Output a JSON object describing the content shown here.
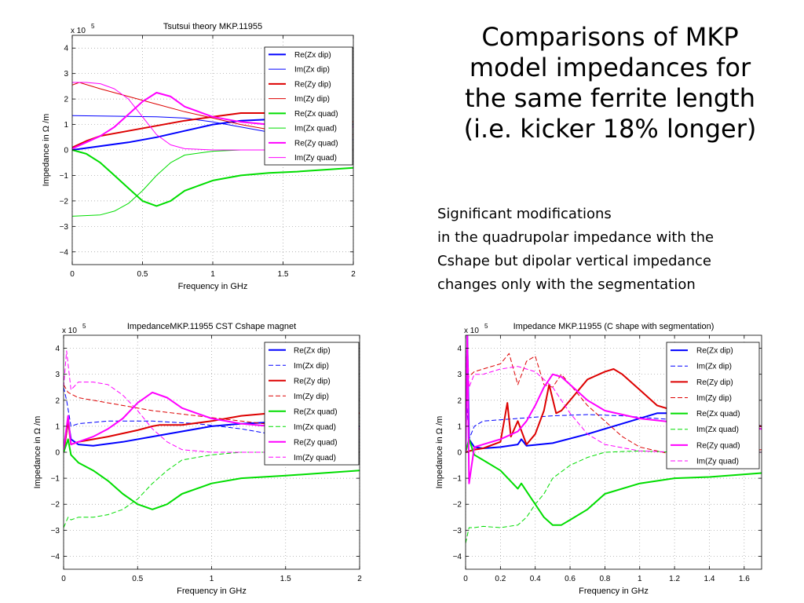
{
  "slide": {
    "title_lines": [
      "Comparisons of MKP",
      "model impedances for",
      "the same ferrite length",
      "(i.e. kicker 18% longer)"
    ],
    "body_lines": [
      "Significant modifications",
      "in the quadrupolar impedance with the",
      "Cshape but dipolar vertical impedance",
      "changes only with the segmentation"
    ]
  },
  "chart_data": [
    {
      "type": "line",
      "title": "Tsutsui theory MKP.11955",
      "xlabel": "Frequency in GHz",
      "ylabel": "Impedance in Ω /m",
      "multiplier": "x 10",
      "multiplier_exp": "5",
      "xlim": [
        0,
        2
      ],
      "ylim": [
        -4.5,
        4.5
      ],
      "xticks": [
        0,
        0.5,
        1,
        1.5,
        2
      ],
      "yticks": [
        -4,
        -3,
        -2,
        -1,
        0,
        1,
        2,
        3,
        4
      ],
      "grid": true,
      "legend_position": "top-right",
      "series": [
        {
          "name": "Re(Zx dip)",
          "color": "#0000ff",
          "style": "solid",
          "width": 2,
          "x": [
            0,
            0.2,
            0.4,
            0.6,
            0.8,
            1.0,
            1.2,
            1.4,
            1.6,
            2.0
          ],
          "y": [
            0,
            0.15,
            0.3,
            0.5,
            0.75,
            1.0,
            1.15,
            1.2,
            1.15,
            1.0
          ]
        },
        {
          "name": "Im(Zx dip)",
          "color": "#0000ff",
          "style": "solid",
          "width": 1,
          "x": [
            0,
            0.2,
            0.4,
            0.6,
            0.8,
            1.0,
            1.2,
            1.4,
            1.6,
            2.0
          ],
          "y": [
            1.35,
            1.33,
            1.32,
            1.3,
            1.25,
            1.1,
            0.9,
            0.7,
            0.55,
            0.4
          ]
        },
        {
          "name": "Re(Zy dip)",
          "color": "#dd0000",
          "style": "solid",
          "width": 2,
          "x": [
            0,
            0.1,
            0.2,
            0.4,
            0.6,
            0.8,
            1.0,
            1.2,
            1.4,
            1.6,
            2.0
          ],
          "y": [
            0.1,
            0.35,
            0.55,
            0.75,
            0.95,
            1.15,
            1.3,
            1.45,
            1.45,
            1.3,
            1.1
          ]
        },
        {
          "name": "Im(Zy dip)",
          "color": "#dd0000",
          "style": "solid",
          "width": 1,
          "x": [
            0,
            0.05,
            0.2,
            0.4,
            0.6,
            0.8,
            1.0,
            1.2,
            1.4,
            1.6,
            2.0
          ],
          "y": [
            2.55,
            2.65,
            2.4,
            2.1,
            1.8,
            1.5,
            1.25,
            1.0,
            0.8,
            0.7,
            0.6
          ]
        },
        {
          "name": "Re(Zx quad)",
          "color": "#00dd00",
          "style": "solid",
          "width": 2,
          "x": [
            0,
            0.1,
            0.2,
            0.3,
            0.4,
            0.5,
            0.6,
            0.7,
            0.8,
            1.0,
            1.2,
            1.4,
            1.6,
            2.0
          ],
          "y": [
            0,
            -0.15,
            -0.5,
            -1.0,
            -1.5,
            -2.0,
            -2.2,
            -2.0,
            -1.6,
            -1.2,
            -1.0,
            -0.9,
            -0.85,
            -0.7
          ]
        },
        {
          "name": "Im(Zx quad)",
          "color": "#00dd00",
          "style": "solid",
          "width": 1,
          "x": [
            0,
            0.2,
            0.3,
            0.4,
            0.5,
            0.6,
            0.7,
            0.8,
            1.0,
            1.2,
            1.5,
            2.0
          ],
          "y": [
            -2.6,
            -2.55,
            -2.4,
            -2.1,
            -1.6,
            -1.0,
            -0.5,
            -0.2,
            -0.05,
            0,
            0,
            0
          ]
        },
        {
          "name": "Re(Zy quad)",
          "color": "#ff00ff",
          "style": "solid",
          "width": 2,
          "x": [
            0,
            0.1,
            0.2,
            0.3,
            0.4,
            0.5,
            0.6,
            0.7,
            0.8,
            1.0,
            1.2,
            1.4,
            1.6,
            2.0
          ],
          "y": [
            0.05,
            0.3,
            0.55,
            0.9,
            1.4,
            1.9,
            2.25,
            2.1,
            1.7,
            1.3,
            1.1,
            1.0,
            0.95,
            0.9
          ]
        },
        {
          "name": "Im(Zy quad)",
          "color": "#ff00ff",
          "style": "solid",
          "width": 1,
          "x": [
            0,
            0.1,
            0.2,
            0.3,
            0.4,
            0.5,
            0.6,
            0.7,
            0.8,
            1.0,
            1.2,
            1.5,
            2.0
          ],
          "y": [
            2.65,
            2.65,
            2.6,
            2.4,
            2.0,
            1.3,
            0.6,
            0.2,
            0.05,
            0,
            0,
            0,
            0
          ]
        }
      ]
    },
    {
      "type": "line",
      "title": "ImpedanceMKP.11955  CST Cshape magnet",
      "xlabel": "Frequency in GHz",
      "ylabel": "Impedance in Ω /m",
      "multiplier": "x 10",
      "multiplier_exp": "5",
      "xlim": [
        0,
        2
      ],
      "ylim": [
        -4.5,
        4.5
      ],
      "xticks": [
        0,
        0.5,
        1,
        1.5,
        2
      ],
      "yticks": [
        -4,
        -3,
        -2,
        -1,
        0,
        1,
        2,
        3,
        4
      ],
      "grid": true,
      "legend_position": "top-right",
      "series": [
        {
          "name": "Re(Zx dip)",
          "color": "#0000ff",
          "style": "solid",
          "width": 2,
          "x": [
            0,
            0.03,
            0.05,
            0.1,
            0.2,
            0.4,
            0.6,
            0.8,
            1.0,
            1.2,
            1.4,
            1.6,
            2.0
          ],
          "y": [
            0,
            1.2,
            0.5,
            0.3,
            0.25,
            0.4,
            0.6,
            0.8,
            1.0,
            1.1,
            1.15,
            1.1,
            1.0
          ]
        },
        {
          "name": "Im(Zx dip)",
          "color": "#0000ff",
          "style": "dashed",
          "width": 1,
          "x": [
            0,
            0.02,
            0.05,
            0.1,
            0.3,
            0.6,
            0.9,
            1.2,
            1.5,
            2.0
          ],
          "y": [
            2.5,
            2.0,
            1.0,
            1.1,
            1.2,
            1.2,
            1.1,
            0.9,
            0.6,
            0.4
          ]
        },
        {
          "name": "Re(Zy dip)",
          "color": "#dd0000",
          "style": "solid",
          "width": 2,
          "x": [
            0,
            0.03,
            0.05,
            0.1,
            0.3,
            0.5,
            0.6,
            0.65,
            0.8,
            1.0,
            1.2,
            1.4,
            1.6,
            2.0
          ],
          "y": [
            0,
            1.2,
            0.3,
            0.4,
            0.6,
            0.85,
            1.0,
            1.05,
            1.05,
            1.2,
            1.4,
            1.5,
            1.55,
            1.5
          ]
        },
        {
          "name": "Im(Zy dip)",
          "color": "#dd0000",
          "style": "dashed",
          "width": 1,
          "x": [
            0,
            0.03,
            0.1,
            0.3,
            0.6,
            0.9,
            1.2,
            1.5,
            2.0
          ],
          "y": [
            2.6,
            2.3,
            2.1,
            1.9,
            1.6,
            1.4,
            1.2,
            1.0,
            0.8
          ]
        },
        {
          "name": "Re(Zx quad)",
          "color": "#00dd00",
          "style": "solid",
          "width": 2,
          "x": [
            0,
            0.03,
            0.05,
            0.1,
            0.2,
            0.3,
            0.4,
            0.5,
            0.6,
            0.7,
            0.8,
            1.0,
            1.2,
            1.5,
            2.0
          ],
          "y": [
            0,
            0.5,
            -0.1,
            -0.4,
            -0.7,
            -1.1,
            -1.6,
            -2.0,
            -2.2,
            -2.0,
            -1.6,
            -1.2,
            -1.0,
            -0.9,
            -0.7
          ]
        },
        {
          "name": "Im(Zx quad)",
          "color": "#00dd00",
          "style": "dashed",
          "width": 1,
          "x": [
            0,
            0.03,
            0.05,
            0.1,
            0.2,
            0.3,
            0.4,
            0.5,
            0.6,
            0.7,
            0.8,
            1.0,
            1.2,
            1.5,
            2.0
          ],
          "y": [
            -2.9,
            -2.5,
            -2.6,
            -2.5,
            -2.5,
            -2.4,
            -2.2,
            -1.8,
            -1.2,
            -0.7,
            -0.3,
            -0.1,
            0,
            0,
            0
          ]
        },
        {
          "name": "Re(Zy quad)",
          "color": "#ff00ff",
          "style": "solid",
          "width": 2,
          "x": [
            0,
            0.03,
            0.05,
            0.1,
            0.2,
            0.3,
            0.4,
            0.5,
            0.6,
            0.7,
            0.8,
            1.0,
            1.2,
            1.4,
            2.0
          ],
          "y": [
            0.1,
            1.4,
            0.3,
            0.4,
            0.6,
            0.9,
            1.3,
            1.9,
            2.3,
            2.1,
            1.7,
            1.3,
            1.1,
            1.0,
            0.9
          ]
        },
        {
          "name": "Im(Zy quad)",
          "color": "#ff00ff",
          "style": "dashed",
          "width": 1,
          "x": [
            0,
            0.02,
            0.05,
            0.1,
            0.2,
            0.3,
            0.4,
            0.5,
            0.6,
            0.7,
            0.8,
            1.0,
            1.5,
            2.0
          ],
          "y": [
            2.5,
            3.9,
            2.4,
            2.7,
            2.7,
            2.6,
            2.2,
            1.6,
            0.9,
            0.4,
            0.1,
            0,
            0,
            0
          ]
        }
      ]
    },
    {
      "type": "line",
      "title": "Impedance MKP.11955 (C shape with segmentation)",
      "xlabel": "Frequency in GHz",
      "ylabel": "Impedance in Ω /m",
      "multiplier": "x 10",
      "multiplier_exp": "5",
      "xlim": [
        0,
        1.7
      ],
      "ylim": [
        -4.5,
        4.5
      ],
      "xticks": [
        0,
        0.2,
        0.4,
        0.6,
        0.8,
        1,
        1.2,
        1.4,
        1.6
      ],
      "yticks": [
        -4,
        -3,
        -2,
        -1,
        0,
        1,
        2,
        3,
        4
      ],
      "grid": true,
      "legend_position": "top-right",
      "series": [
        {
          "name": "Re(Zx dip)",
          "color": "#0000ff",
          "style": "solid",
          "width": 2,
          "x": [
            0,
            0.01,
            0.02,
            0.05,
            0.1,
            0.2,
            0.3,
            0.32,
            0.35,
            0.5,
            0.7,
            0.9,
            1.1,
            1.3,
            1.5,
            1.7
          ],
          "y": [
            0,
            4.5,
            0.5,
            0.2,
            0.15,
            0.2,
            0.3,
            0.5,
            0.25,
            0.35,
            0.7,
            1.1,
            1.5,
            1.5,
            1.3,
            1.0
          ]
        },
        {
          "name": "Im(Zx dip)",
          "color": "#0000ff",
          "style": "dashed",
          "width": 1,
          "x": [
            0,
            0.02,
            0.05,
            0.1,
            0.3,
            0.5,
            0.7,
            0.9,
            1.1,
            1.3,
            1.5,
            1.7
          ],
          "y": [
            2.5,
            0.5,
            1.0,
            1.2,
            1.3,
            1.4,
            1.45,
            1.4,
            1.3,
            1.2,
            1.05,
            0.9
          ]
        },
        {
          "name": "Re(Zy dip)",
          "color": "#dd0000",
          "style": "solid",
          "width": 2,
          "x": [
            0,
            0.05,
            0.1,
            0.2,
            0.24,
            0.26,
            0.3,
            0.35,
            0.4,
            0.45,
            0.48,
            0.52,
            0.55,
            0.6,
            0.7,
            0.8,
            0.85,
            0.9,
            1.0,
            1.1,
            1.2,
            1.4,
            1.6,
            1.7
          ],
          "y": [
            0,
            0.1,
            0.15,
            0.4,
            1.9,
            0.6,
            1.2,
            0.3,
            0.7,
            1.6,
            2.6,
            1.5,
            1.6,
            2.0,
            2.8,
            3.1,
            3.2,
            3.0,
            2.4,
            1.8,
            1.6,
            1.2,
            1.05,
            1.0
          ]
        },
        {
          "name": "Im(Zy dip)",
          "color": "#dd0000",
          "style": "dashed",
          "width": 1,
          "x": [
            0,
            0.05,
            0.1,
            0.2,
            0.25,
            0.3,
            0.35,
            0.4,
            0.45,
            0.5,
            0.55,
            0.6,
            0.7,
            0.8,
            0.9,
            1.0,
            1.2,
            1.4,
            1.7
          ],
          "y": [
            2.8,
            3.1,
            3.2,
            3.4,
            3.8,
            2.6,
            3.5,
            3.7,
            2.6,
            2.5,
            3.0,
            2.6,
            1.8,
            1.2,
            0.6,
            0.2,
            -0.1,
            -0.1,
            0.1
          ]
        },
        {
          "name": "Re(Zx quad)",
          "color": "#00dd00",
          "style": "solid",
          "width": 2,
          "x": [
            0,
            0.02,
            0.05,
            0.1,
            0.2,
            0.3,
            0.32,
            0.35,
            0.45,
            0.5,
            0.55,
            0.6,
            0.7,
            0.8,
            1.0,
            1.2,
            1.4,
            1.7
          ],
          "y": [
            0,
            0.5,
            -0.1,
            -0.3,
            -0.7,
            -1.4,
            -1.2,
            -1.5,
            -2.5,
            -2.8,
            -2.8,
            -2.6,
            -2.2,
            -1.6,
            -1.2,
            -1.0,
            -0.95,
            -0.8
          ]
        },
        {
          "name": "Im(Zx quad)",
          "color": "#00dd00",
          "style": "dashed",
          "width": 1,
          "x": [
            0,
            0.02,
            0.05,
            0.1,
            0.2,
            0.3,
            0.35,
            0.4,
            0.45,
            0.5,
            0.6,
            0.7,
            0.8,
            1.0,
            1.2,
            1.5,
            1.7
          ],
          "y": [
            -3.5,
            -2.9,
            -2.9,
            -2.85,
            -2.9,
            -2.8,
            -2.5,
            -2.0,
            -1.6,
            -1.0,
            -0.5,
            -0.2,
            0,
            0.05,
            0,
            0,
            0
          ]
        },
        {
          "name": "Re(Zy quad)",
          "color": "#ff00ff",
          "style": "solid",
          "width": 2,
          "x": [
            0,
            0.01,
            0.02,
            0.05,
            0.1,
            0.2,
            0.3,
            0.35,
            0.4,
            0.45,
            0.5,
            0.55,
            0.6,
            0.7,
            0.8,
            1.0,
            1.2,
            1.4,
            1.7
          ],
          "y": [
            0,
            4.5,
            -1.2,
            0.2,
            0.3,
            0.5,
            0.8,
            1.2,
            1.8,
            2.5,
            3.0,
            2.9,
            2.6,
            2.0,
            1.6,
            1.3,
            1.15,
            1.05,
            0.9
          ]
        },
        {
          "name": "Im(Zy quad)",
          "color": "#ff00ff",
          "style": "dashed",
          "width": 1,
          "x": [
            0,
            0.01,
            0.02,
            0.05,
            0.1,
            0.2,
            0.3,
            0.4,
            0.5,
            0.6,
            0.7,
            0.8,
            1.0,
            1.2,
            1.7
          ],
          "y": [
            3.0,
            4.5,
            2.5,
            3.0,
            3.0,
            3.2,
            3.3,
            3.1,
            2.5,
            1.5,
            0.7,
            0.3,
            0.05,
            0,
            0
          ]
        }
      ]
    }
  ]
}
